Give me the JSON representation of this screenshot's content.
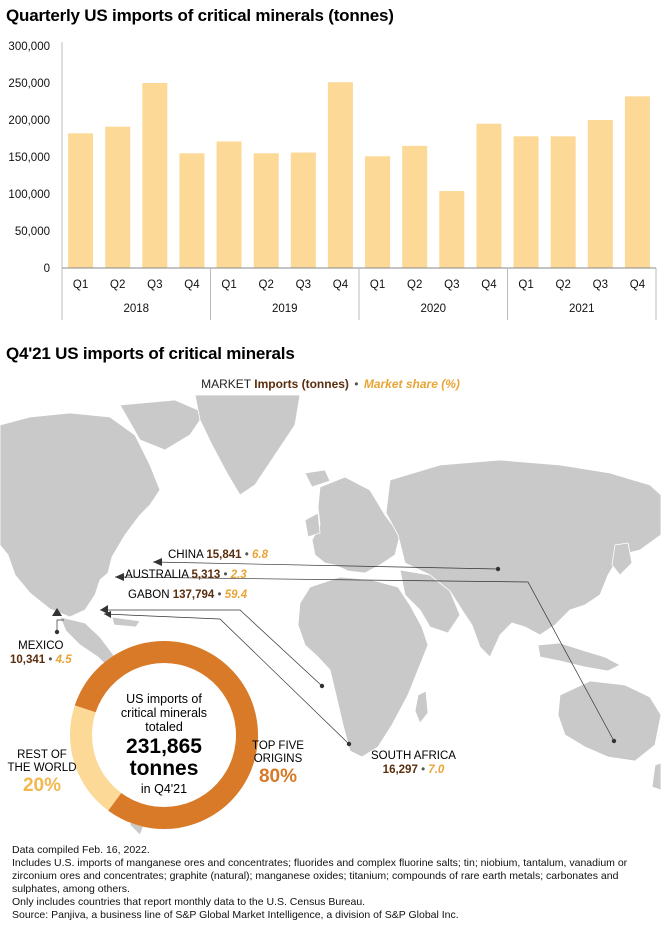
{
  "chart_data": [
    {
      "type": "bar",
      "title": "Quarterly US imports of critical minerals (tonnes)",
      "categories": [
        "Q1",
        "Q2",
        "Q3",
        "Q4",
        "Q1",
        "Q2",
        "Q3",
        "Q4",
        "Q1",
        "Q2",
        "Q3",
        "Q4",
        "Q1",
        "Q2",
        "Q3",
        "Q4"
      ],
      "years": [
        "2018",
        "2019",
        "2020",
        "2021"
      ],
      "values": [
        182000,
        191000,
        250000,
        155000,
        171000,
        155000,
        156000,
        251000,
        151000,
        165000,
        104000,
        195000,
        178000,
        178000,
        200000,
        232000
      ],
      "ylim": [
        0,
        300000
      ],
      "yticks": [
        "0",
        "50,000",
        "100,000",
        "150,000",
        "200,000",
        "250,000",
        "300,000"
      ],
      "color": "#fcd996"
    },
    {
      "type": "pie",
      "title": "Q4'21 US imports of critical minerals",
      "slices": [
        {
          "label": "TOP FIVE ORIGINS",
          "value": 80,
          "value_label": "80%",
          "color": "#d87a28"
        },
        {
          "label": "REST OF THE WORLD",
          "value": 20,
          "value_label": "20%",
          "color": "#fcd996"
        }
      ]
    }
  ],
  "legend": {
    "market": "MARKET",
    "imports": "Imports (tonnes)",
    "share": "Market share (%)",
    "sep": "•"
  },
  "markets": [
    {
      "name": "CHINA",
      "imports": "15,841",
      "share": "6.8"
    },
    {
      "name": "AUSTRALIA",
      "imports": "5,313",
      "share": "2.3"
    },
    {
      "name": "GABON",
      "imports": "137,794",
      "share": "59.4"
    },
    {
      "name": "MEXICO",
      "imports": "10,341",
      "share": "4.5"
    },
    {
      "name": "SOUTH AFRICA",
      "imports": "16,297",
      "share": "7.0"
    }
  ],
  "donut": {
    "line1": "US imports of",
    "line2": "critical minerals",
    "line3": "totaled",
    "total": "231,865",
    "unit": "tonnes",
    "period": "in Q4'21",
    "top_label_1": "TOP FIVE",
    "top_label_2": "ORIGINS",
    "top_pct": "80%",
    "rest_label_1": "REST OF",
    "rest_label_2": "THE WORLD",
    "rest_pct": "20%"
  },
  "notes": [
    "Data compiled Feb. 16, 2022.",
    "Includes U.S. imports of manganese ores and concentrates; fluorides and complex fluorine salts; tin; niobium, tantalum, vanadium or zirconium ores and concentrates; graphite (natural); manganese oxides; titanium; compounds of rare earth metals; carbonates and sulphates, among others.",
    "Only includes countries that report monthly data to the U.S. Census Bureau.",
    "Source: Panjiva, a business line of S&P Global Market Intelligence, a division of S&P Global Inc."
  ]
}
